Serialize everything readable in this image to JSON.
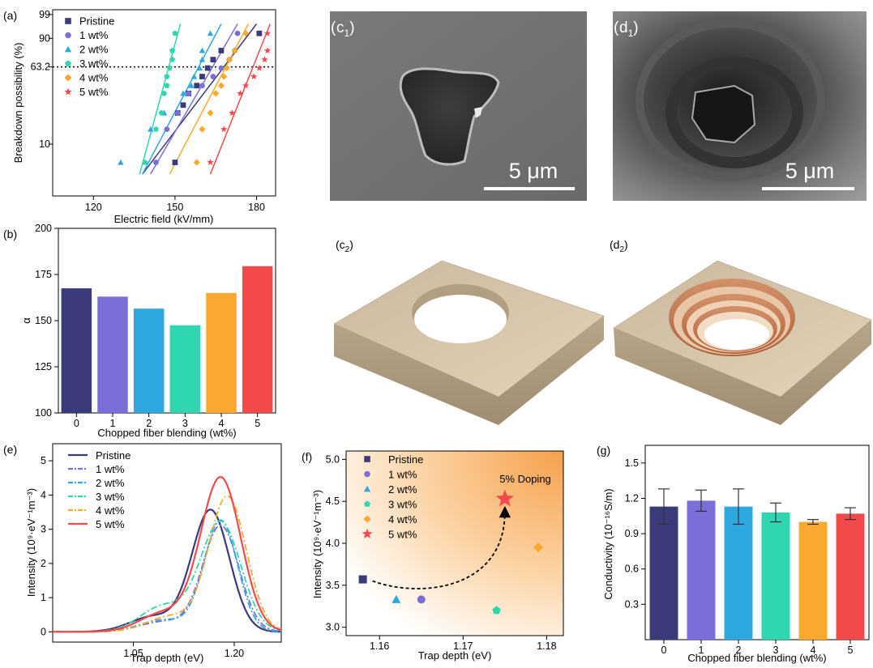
{
  "panels": {
    "a": "(a)",
    "b": "(b)",
    "e": "(e)",
    "f": "(f)",
    "g": "(g)",
    "c1": "c",
    "c1sub": "1",
    "d1": "d",
    "d1sub": "1",
    "c2": "c",
    "c2sub": "2",
    "d2": "d",
    "d2sub": "2"
  },
  "sem": {
    "c1_scale": "5 μm",
    "d1_scale": "5 μm"
  },
  "colors": {
    "Pristine": "#3b3a7a",
    "1 wt%": "#7a6fd8",
    "2 wt%": "#2ea7de",
    "3 wt%": "#2fd6b0",
    "4 wt%": "#f9a92e",
    "5 wt%": "#f24a4a"
  },
  "chart_data": [
    {
      "id": "a",
      "type": "scatter",
      "xlabel": "Electric field (kV/mm)",
      "ylabel": "Breakdown possibility (%)",
      "xlim": [
        105,
        187
      ],
      "xticks": [
        "120",
        "150",
        "180"
      ],
      "yticks": [
        "10",
        "63.2",
        "90",
        "99"
      ],
      "reference_line": 63.2,
      "legend": [
        "Pristine",
        "1 wt%",
        "2 wt%",
        "3 wt%",
        "4 wt%",
        "5 wt%"
      ],
      "series": [
        {
          "name": "Pristine",
          "marker": "square",
          "x": [
            150,
            151,
            153,
            155,
            158,
            160,
            162,
            164,
            167,
            181
          ],
          "y": [
            6,
            23,
            28,
            37,
            44,
            53,
            62,
            71,
            80,
            93
          ],
          "fit_x": [
            138,
            180
          ],
          "fit_y": [
            4.3,
            97
          ]
        },
        {
          "name": "1 wt%",
          "marker": "circle",
          "x": [
            143,
            147,
            151,
            155,
            160,
            164,
            167,
            170,
            172,
            173
          ],
          "y": [
            6,
            15,
            23,
            37,
            44,
            53,
            62,
            71,
            80,
            93
          ],
          "fit_x": [
            141,
            173
          ],
          "fit_y": [
            4.3,
            97
          ]
        },
        {
          "name": "2 wt%",
          "marker": "triangle",
          "x": [
            130,
            141,
            146,
            153,
            156,
            157,
            159,
            160,
            160,
            163
          ],
          "y": [
            6,
            15,
            23,
            37,
            44,
            53,
            62,
            71,
            80,
            93
          ],
          "fit_x": [
            138,
            167
          ],
          "fit_y": [
            4.3,
            97
          ]
        },
        {
          "name": "3 wt%",
          "marker": "pentagon",
          "x": [
            139,
            143,
            145,
            146,
            147,
            147,
            148,
            149,
            149,
            150
          ],
          "y": [
            6,
            15,
            23,
            37,
            44,
            53,
            62,
            71,
            80,
            93
          ],
          "fit_x": [
            137,
            152
          ],
          "fit_y": [
            4.3,
            97
          ]
        },
        {
          "name": "4 wt%",
          "marker": "diamond",
          "x": [
            158,
            160,
            163,
            165,
            167,
            168,
            169,
            170,
            172,
            176
          ],
          "y": [
            6,
            15,
            23,
            37,
            44,
            53,
            62,
            71,
            80,
            93
          ],
          "fit_x": [
            148,
            177
          ],
          "fit_y": [
            4.3,
            97
          ]
        },
        {
          "name": "5 wt%",
          "marker": "star",
          "x": [
            163,
            168,
            171,
            174,
            176,
            179,
            181,
            183,
            184,
            184
          ],
          "y": [
            6,
            15,
            23,
            37,
            44,
            53,
            62,
            71,
            80,
            93
          ],
          "fit_x": [
            163,
            185
          ],
          "fit_y": [
            4.3,
            97
          ]
        }
      ]
    },
    {
      "id": "b",
      "type": "bar",
      "xlabel": "Chopped fiber blending (wt%)",
      "ylabel": "α",
      "ylim": [
        100,
        200
      ],
      "yticks": [
        "100",
        "125",
        "150",
        "175",
        "200"
      ],
      "categories": [
        "0",
        "1",
        "2",
        "3",
        "4",
        "5"
      ],
      "values": [
        167.5,
        163,
        156.5,
        147.5,
        165,
        179.5
      ]
    },
    {
      "id": "e",
      "type": "line",
      "xlabel": "Trap depth (eV)",
      "ylabel": "Intensity (10⁹·eV⁻¹m⁻³)",
      "xlim": [
        0.93,
        1.27
      ],
      "ylim": [
        -0.3,
        5.5
      ],
      "xticks": [
        "1.05",
        "1.20"
      ],
      "yticks": [
        "0",
        "1",
        "2",
        "3",
        "4",
        "5"
      ],
      "legend": [
        "Pristine",
        "1 wt%",
        "2 wt%",
        "3 wt%",
        "4 wt%",
        "5 wt%"
      ],
      "series": [
        {
          "name": "Pristine",
          "dash": "solid",
          "center": 1.165,
          "amp": 3.55,
          "sigma": 0.028,
          "shoulder": 0.45
        },
        {
          "name": "1 wt%",
          "dash": "dashdot",
          "center": 1.18,
          "amp": 3.1,
          "sigma": 0.027,
          "shoulder": 0.3
        },
        {
          "name": "2 wt%",
          "dash": "dashdot",
          "center": 1.18,
          "amp": 3.25,
          "sigma": 0.025,
          "shoulder": 0.35
        },
        {
          "name": "3 wt%",
          "dash": "dashdot",
          "center": 1.18,
          "amp": 3.2,
          "sigma": 0.03,
          "shoulder": 0.75
        },
        {
          "name": "4 wt%",
          "dash": "dashdot",
          "center": 1.19,
          "amp": 3.95,
          "sigma": 0.028,
          "shoulder": 0.45
        },
        {
          "name": "5 wt%",
          "dash": "solid",
          "center": 1.18,
          "amp": 4.5,
          "sigma": 0.03,
          "shoulder": 0.55
        }
      ]
    },
    {
      "id": "f",
      "type": "scatter",
      "xlabel": "Trap depth (eV)",
      "ylabel": "Intensity (10⁹·eV⁻¹m⁻³)",
      "xlim": [
        1.156,
        1.182
      ],
      "ylim": [
        2.9,
        5.1
      ],
      "xticks": [
        "1.16",
        "1.17",
        "1.18"
      ],
      "yticks": [
        "3.0",
        "3.5",
        "4.0",
        "4.5",
        "5.0"
      ],
      "annotation": "5% Doping",
      "legend": [
        "Pristine",
        "1 wt%",
        "2 wt%",
        "3 wt%",
        "4 wt%",
        "5 wt%"
      ],
      "points": [
        {
          "name": "Pristine",
          "marker": "square",
          "x": 1.158,
          "y": 3.57
        },
        {
          "name": "1 wt%",
          "marker": "circle",
          "x": 1.165,
          "y": 3.33
        },
        {
          "name": "2 wt%",
          "marker": "triangle",
          "x": 1.162,
          "y": 3.33
        },
        {
          "name": "3 wt%",
          "marker": "pentagon",
          "x": 1.174,
          "y": 3.2
        },
        {
          "name": "4 wt%",
          "marker": "diamond",
          "x": 1.179,
          "y": 3.95
        },
        {
          "name": "5 wt%",
          "marker": "star",
          "x": 1.175,
          "y": 4.53
        }
      ]
    },
    {
      "id": "g",
      "type": "bar",
      "xlabel": "Chopped fiber blending (wt%)",
      "ylabel": "Conductivity (10⁻¹⁶S/m)",
      "ylim": [
        0,
        1.65
      ],
      "yticks": [
        "0.3",
        "0.6",
        "0.9",
        "1.2",
        "1.5"
      ],
      "categories": [
        "0",
        "1",
        "2",
        "3",
        "4",
        "5"
      ],
      "values": [
        1.13,
        1.18,
        1.13,
        1.08,
        1.0,
        1.07
      ],
      "errors": [
        0.15,
        0.09,
        0.15,
        0.08,
        0.02,
        0.05
      ]
    }
  ]
}
